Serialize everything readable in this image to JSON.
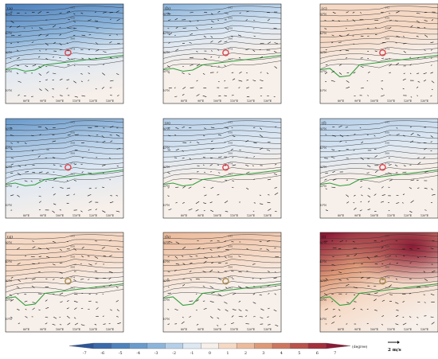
{
  "chart_data": {
    "type": "heatmap",
    "colorbar": {
      "ticks": [
        "-7",
        "-6",
        "-5",
        "-4",
        "-3",
        "-2",
        "-1",
        "0",
        "1",
        "2",
        "3",
        "4",
        "5",
        "6",
        "7"
      ],
      "unit_label": "(degree)",
      "range": [
        -7,
        7
      ],
      "colors": [
        "#2c5597",
        "#3b6aab",
        "#4f82bd",
        "#6b9bcc",
        "#8db5db",
        "#b6cfe8",
        "#dde8f3",
        "#f7efe9",
        "#f5d9c5",
        "#ecbb9d",
        "#de9a78",
        "#cd7761",
        "#b9534c",
        "#a3303c",
        "#8b1a35"
      ]
    },
    "vector_key": {
      "label": "2 m/s"
    },
    "xticks": [
      "80°E",
      "90°E",
      "100°E",
      "110°E",
      "120°E",
      "130°E"
    ],
    "yticks": [
      "50°N",
      "40°N",
      "30°N",
      "20°N",
      "10°N"
    ],
    "contour_labels": [
      "542",
      "546",
      "550",
      "554",
      "558",
      "562",
      "566",
      "570",
      "574",
      "578",
      "582",
      "586"
    ],
    "panels": [
      {
        "label": "(a)",
        "mean_anomaly": -2.6,
        "pattern": "cold-north"
      },
      {
        "label": "(b)",
        "mean_anomaly": -1.4,
        "pattern": "cold-north"
      },
      {
        "label": "(c)",
        "mean_anomaly": 0.8,
        "pattern": "warm-north"
      },
      {
        "label": "",
        "mean_anomaly": -2.4,
        "pattern": "cold-north"
      },
      {
        "label": "(e)",
        "mean_anomaly": -1.1,
        "pattern": "cold-north"
      },
      {
        "label": "(f)",
        "mean_anomaly": -1.3,
        "pattern": "cold-north"
      },
      {
        "label": "(g)",
        "mean_anomaly": 0.7,
        "pattern": "warm-north"
      },
      {
        "label": "(h)",
        "mean_anomaly": 0.9,
        "pattern": "warm-north"
      },
      {
        "label": "(i)",
        "mean_anomaly": 3.6,
        "pattern": "warm-northeast"
      }
    ]
  }
}
